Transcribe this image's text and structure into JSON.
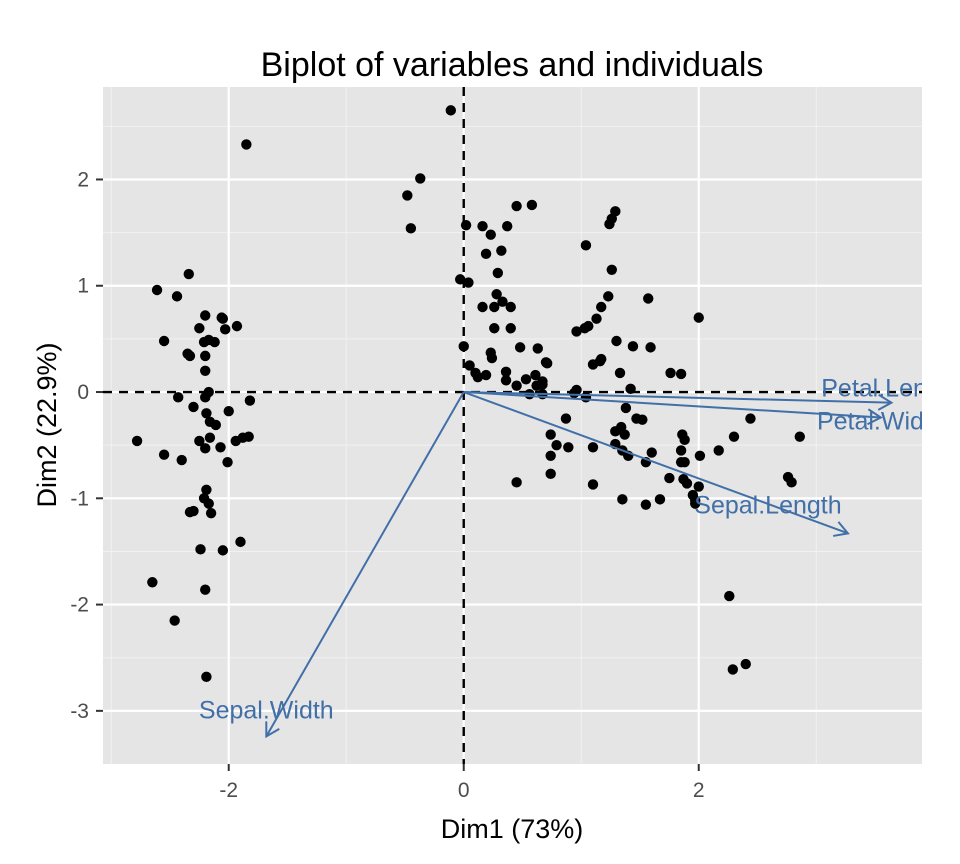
{
  "chart_data": {
    "type": "scatter",
    "title": "Biplot of variables and individuals",
    "xlabel": "Dim1 (73%)",
    "ylabel": "Dim2 (22.9%)",
    "xlim": [
      -3.07,
      3.9
    ],
    "ylim": [
      -3.5,
      2.87
    ],
    "xticks": [
      -2,
      0,
      2
    ],
    "yticks": [
      2,
      1,
      0,
      -1,
      -2,
      -3
    ],
    "grid": true,
    "colors": {
      "panel": "#e5e5e5",
      "grid_major": "#ffffff",
      "grid_minor": "#f2f2f2",
      "points": "#000000",
      "variables": "#4170a8"
    },
    "variables": [
      {
        "name": "Sepal.Length",
        "x": 3.27,
        "y": -1.33
      },
      {
        "name": "Sepal.Width",
        "x": -1.68,
        "y": -3.24
      },
      {
        "name": "Petal.Length",
        "x": 3.64,
        "y": -0.1
      },
      {
        "name": "Petal.Width",
        "x": 3.55,
        "y": -0.24
      }
    ],
    "individuals": [
      [
        -2.19,
        -2.68
      ],
      [
        -2.46,
        -2.15
      ],
      [
        -2.65,
        -1.79
      ],
      [
        -2.24,
        -1.48
      ],
      [
        -2.05,
        -1.49
      ],
      [
        -1.9,
        -1.41
      ],
      [
        -2.2,
        -1.86
      ],
      [
        -2.33,
        -1.13
      ],
      [
        -2.3,
        -1.12
      ],
      [
        -2.15,
        -1.14
      ],
      [
        -2.17,
        -1.05
      ],
      [
        -2.21,
        -1.0
      ],
      [
        -2.19,
        -0.92
      ],
      [
        -2.55,
        -0.59
      ],
      [
        -2.4,
        -0.64
      ],
      [
        -2.78,
        -0.46
      ],
      [
        -2.25,
        -0.46
      ],
      [
        -2.2,
        -0.53
      ],
      [
        -2.16,
        -0.43
      ],
      [
        -2.07,
        -0.52
      ],
      [
        -2.01,
        -0.66
      ],
      [
        -1.94,
        -0.46
      ],
      [
        -1.83,
        -0.42
      ],
      [
        -1.88,
        -0.43
      ],
      [
        -2.11,
        -0.31
      ],
      [
        -2.16,
        -0.28
      ],
      [
        -2.3,
        -0.14
      ],
      [
        -2.19,
        -0.2
      ],
      [
        -2.0,
        -0.18
      ],
      [
        -2.43,
        -0.05
      ],
      [
        -2.2,
        -0.05
      ],
      [
        -1.82,
        -0.08
      ],
      [
        -2.17,
        -0.0
      ],
      [
        -2.2,
        0.2
      ],
      [
        -2.35,
        0.36
      ],
      [
        -2.33,
        0.34
      ],
      [
        -2.2,
        0.34
      ],
      [
        -2.55,
        0.48
      ],
      [
        -2.21,
        0.47
      ],
      [
        -2.17,
        0.49
      ],
      [
        -2.12,
        0.47
      ],
      [
        -2.25,
        0.6
      ],
      [
        -2.03,
        0.59
      ],
      [
        -1.93,
        0.62
      ],
      [
        -2.2,
        0.72
      ],
      [
        -2.05,
        0.69
      ],
      [
        -2.06,
        0.7
      ],
      [
        -2.44,
        0.9
      ],
      [
        -2.61,
        0.96
      ],
      [
        -2.34,
        1.11
      ],
      [
        -1.85,
        2.33
      ],
      [
        -0.11,
        2.65
      ],
      [
        -0.37,
        2.01
      ],
      [
        -0.48,
        1.85
      ],
      [
        -0.45,
        1.54
      ],
      [
        0.02,
        1.57
      ],
      [
        0.16,
        1.56
      ],
      [
        0.45,
        1.75
      ],
      [
        0.58,
        1.76
      ],
      [
        0.37,
        1.56
      ],
      [
        0.23,
        1.48
      ],
      [
        0.32,
        1.33
      ],
      [
        0.19,
        1.3
      ],
      [
        0.29,
        1.12
      ],
      [
        0.04,
        1.03
      ],
      [
        -0.03,
        1.06
      ],
      [
        0.16,
        0.8
      ],
      [
        0.28,
        0.92
      ],
      [
        0.33,
        0.85
      ],
      [
        0.26,
        0.8
      ],
      [
        0.4,
        0.8
      ],
      [
        0.4,
        0.6
      ],
      [
        0.26,
        0.6
      ],
      [
        0.0,
        0.43
      ],
      [
        0.23,
        0.37
      ],
      [
        0.48,
        0.42
      ],
      [
        0.63,
        0.41
      ],
      [
        0.36,
        0.19
      ],
      [
        0.24,
        0.32
      ],
      [
        0.1,
        0.18
      ],
      [
        0.05,
        0.25
      ],
      [
        0.19,
        0.16
      ],
      [
        0.12,
        0.14
      ],
      [
        0.36,
        0.11
      ],
      [
        0.45,
        0.06
      ],
      [
        0.53,
        0.12
      ],
      [
        0.61,
        0.16
      ],
      [
        0.67,
        0.07
      ],
      [
        0.67,
        0.1
      ],
      [
        0.62,
        0.06
      ],
      [
        0.71,
        0.27
      ],
      [
        0.7,
        0.28
      ],
      [
        0.67,
        -0.02
      ],
      [
        0.56,
        -0.02
      ],
      [
        0.96,
        0.02
      ],
      [
        0.94,
        -0.01
      ],
      [
        1.04,
        -0.05
      ],
      [
        0.87,
        -0.25
      ],
      [
        0.79,
        -0.5
      ],
      [
        0.74,
        -0.4
      ],
      [
        0.74,
        -0.6
      ],
      [
        0.74,
        -0.77
      ],
      [
        0.45,
        -0.85
      ],
      [
        0.89,
        -0.52
      ],
      [
        1.1,
        -0.52
      ],
      [
        1.1,
        -0.87
      ],
      [
        1.29,
        -0.37
      ],
      [
        1.29,
        -0.49
      ],
      [
        1.34,
        -0.33
      ],
      [
        1.37,
        -0.4
      ],
      [
        1.35,
        -0.55
      ],
      [
        1.35,
        -1.01
      ],
      [
        1.55,
        -1.06
      ],
      [
        1.67,
        -1.01
      ],
      [
        1.75,
        -0.81
      ],
      [
        1.87,
        -0.82
      ],
      [
        1.85,
        -0.66
      ],
      [
        1.85,
        -0.55
      ],
      [
        1.88,
        -0.45
      ],
      [
        1.86,
        -0.4
      ],
      [
        1.88,
        -0.66
      ],
      [
        1.9,
        -0.86
      ],
      [
        1.95,
        -0.97
      ],
      [
        1.97,
        -1.02
      ],
      [
        2.0,
        -0.89
      ],
      [
        2.01,
        -0.6
      ],
      [
        1.55,
        -0.66
      ],
      [
        1.6,
        -0.57
      ],
      [
        1.38,
        -0.15
      ],
      [
        1.4,
        -0.6
      ],
      [
        1.47,
        -0.25
      ],
      [
        1.52,
        -0.26
      ],
      [
        1.33,
        0.18
      ],
      [
        1.42,
        0.03
      ],
      [
        1.44,
        0.43
      ],
      [
        1.3,
        0.48
      ],
      [
        1.16,
        0.29
      ],
      [
        1.17,
        0.31
      ],
      [
        1.1,
        0.26
      ],
      [
        1.06,
        0.62
      ],
      [
        1.13,
        0.69
      ],
      [
        1.17,
        0.8
      ],
      [
        0.96,
        0.57
      ],
      [
        1.03,
        0.6
      ],
      [
        1.24,
        1.58
      ],
      [
        1.26,
        1.63
      ],
      [
        1.29,
        1.7
      ],
      [
        1.04,
        1.38
      ],
      [
        1.26,
        1.15
      ],
      [
        1.23,
        0.9
      ],
      [
        1.57,
        0.88
      ],
      [
        1.59,
        0.42
      ],
      [
        1.76,
        0.18
      ],
      [
        1.85,
        0.17
      ],
      [
        2.0,
        0.7
      ],
      [
        2.17,
        -0.55
      ],
      [
        2.3,
        -0.42
      ],
      [
        2.44,
        -0.25
      ],
      [
        2.86,
        -0.42
      ],
      [
        2.76,
        -0.8
      ],
      [
        2.79,
        -0.85
      ],
      [
        1.97,
        -1.05
      ],
      [
        2.26,
        -1.92
      ],
      [
        2.29,
        -2.61
      ],
      [
        2.4,
        -2.56
      ]
    ]
  }
}
